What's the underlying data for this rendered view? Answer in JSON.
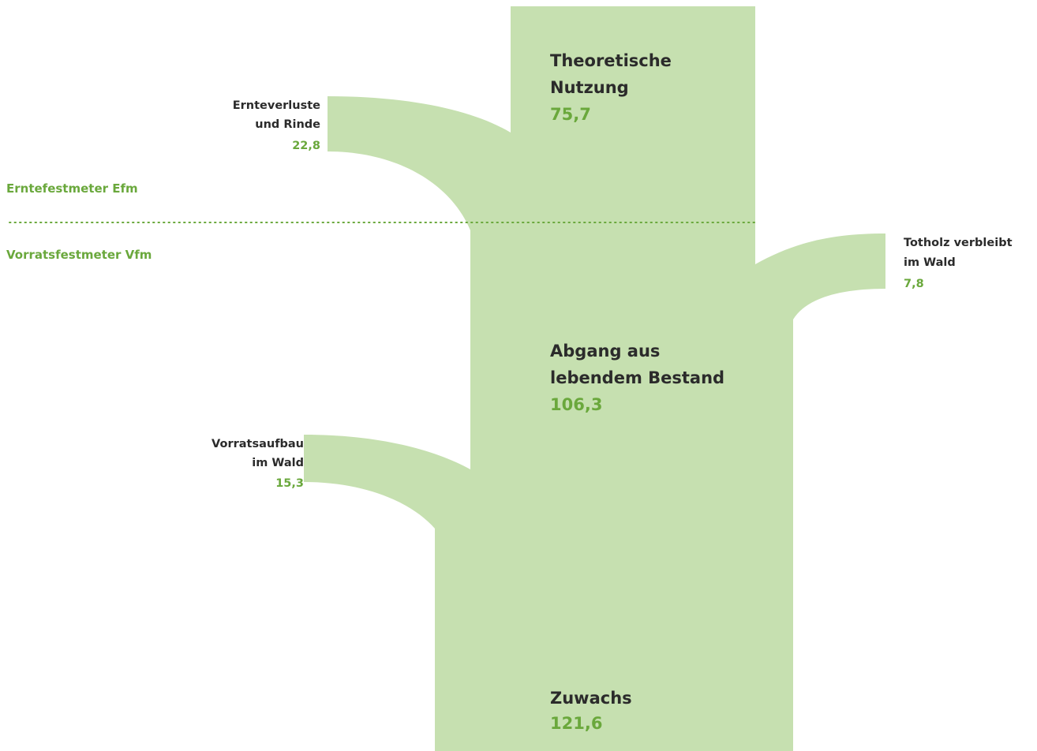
{
  "regions": [
    "Erntefestmeter Efm",
    "Vorratsfestmeter Vfm"
  ],
  "nodes": [
    {
      "label": [
        "Theoretische",
        "Nutzung"
      ],
      "value": "75,7"
    },
    {
      "label": [
        "Ernteverluste",
        "und Rinde"
      ],
      "value": "22,8"
    },
    {
      "label": [
        "Totholz verbleibt",
        "im Wald"
      ],
      "value": "7,8"
    },
    {
      "label": [
        "Abgang aus",
        "lebendem Bestand"
      ],
      "value": "106,3"
    },
    {
      "label": [
        "Vorratsaufbau",
        "im Wald"
      ],
      "value": "15,3"
    },
    {
      "label": [
        "Zuwachs"
      ],
      "value": "121,6"
    }
  ]
}
